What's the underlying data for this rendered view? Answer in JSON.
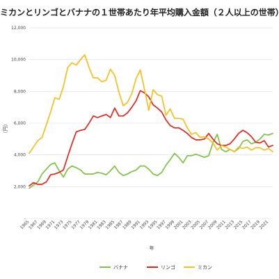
{
  "chart_data": {
    "type": "line",
    "title": "ミカンとリンゴとバナナの１世帯あたり年平均購入金額（２人以上の世帯）",
    "xlabel": "年",
    "ylabel": "（円）",
    "ylim": [
      0,
      12000
    ],
    "yticks": [
      0,
      2000,
      4000,
      6000,
      8000,
      10000,
      12000
    ],
    "ytick_labels": [
      "-",
      "2,000",
      "4,000",
      "6,000",
      "8,000",
      "10,000",
      "12,000"
    ],
    "xtick_labels": [
      "1965",
      "1967",
      "1969",
      "1971",
      "1973",
      "1975",
      "1977",
      "1979",
      "1981",
      "1983",
      "1985",
      "1987",
      "1989",
      "1991",
      "1993",
      "1995",
      "1997",
      "1999",
      "2001",
      "2003",
      "2005",
      "2007",
      "2009",
      "2011",
      "2013",
      "2015",
      "2017",
      "2019",
      "2021"
    ],
    "grid": true,
    "legend_position": "bottom",
    "x": [
      1965,
      1966,
      1967,
      1968,
      1969,
      1970,
      1971,
      1972,
      1973,
      1974,
      1975,
      1976,
      1977,
      1978,
      1979,
      1980,
      1981,
      1982,
      1983,
      1984,
      1985,
      1986,
      1987,
      1988,
      1989,
      1990,
      1991,
      1992,
      1993,
      1994,
      1995,
      1996,
      1997,
      1998,
      1999,
      2000,
      2001,
      2002,
      2003,
      2004,
      2005,
      2006,
      2007,
      2008,
      2009,
      2010,
      2011,
      2012,
      2013,
      2014,
      2015,
      2016,
      2017,
      2018,
      2019,
      2020,
      2021,
      2022
    ],
    "series": [
      {
        "name": "バナナ",
        "color": "#7dc242",
        "values": [
          1900,
          2100,
          2300,
          2800,
          3100,
          3400,
          3500,
          3000,
          2600,
          3100,
          3300,
          3200,
          3050,
          2800,
          2800,
          2800,
          2900,
          2850,
          2750,
          3000,
          3300,
          2900,
          2700,
          2800,
          2950,
          3050,
          3300,
          3300,
          3100,
          2800,
          2700,
          2900,
          3350,
          3700,
          4100,
          3850,
          3500,
          3950,
          3950,
          4050,
          3950,
          3850,
          3950,
          4750,
          5300,
          4350,
          4200,
          4350,
          4200,
          4400,
          4850,
          4950,
          4700,
          4800,
          5000,
          5300,
          5250,
          5350
        ]
      },
      {
        "name": "リンゴ",
        "color": "#e8231b",
        "values": [
          2050,
          2250,
          2150,
          2150,
          2300,
          2750,
          2800,
          2900,
          3050,
          3900,
          4700,
          5450,
          5550,
          5600,
          6000,
          6450,
          6350,
          6450,
          6550,
          6350,
          6950,
          6450,
          6450,
          6650,
          7000,
          7400,
          8050,
          7900,
          7650,
          7150,
          6950,
          6700,
          6200,
          5850,
          5700,
          5700,
          5550,
          5350,
          5100,
          4950,
          4950,
          5000,
          5350,
          5000,
          4700,
          4600,
          4600,
          4700,
          5000,
          5350,
          5550,
          5400,
          5150,
          4800,
          4750,
          4900,
          4500,
          4600
        ]
      },
      {
        "name": "ミカン",
        "color": "#f6bf1b",
        "values": [
          4100,
          4500,
          4900,
          5100,
          5900,
          6700,
          7600,
          7500,
          8300,
          9500,
          9800,
          9650,
          10000,
          10300,
          9500,
          8850,
          8850,
          8600,
          8700,
          9400,
          9000,
          7950,
          7100,
          7300,
          7850,
          8800,
          9350,
          8100,
          6800,
          8100,
          7800,
          7700,
          6500,
          6900,
          6300,
          6300,
          6250,
          5700,
          5300,
          5400,
          5100,
          5150,
          5000,
          4750,
          4300,
          4600,
          4500,
          4350,
          4200,
          4500,
          4400,
          4500,
          4300,
          4450,
          4450,
          4300,
          4400,
          4200
        ]
      }
    ]
  }
}
